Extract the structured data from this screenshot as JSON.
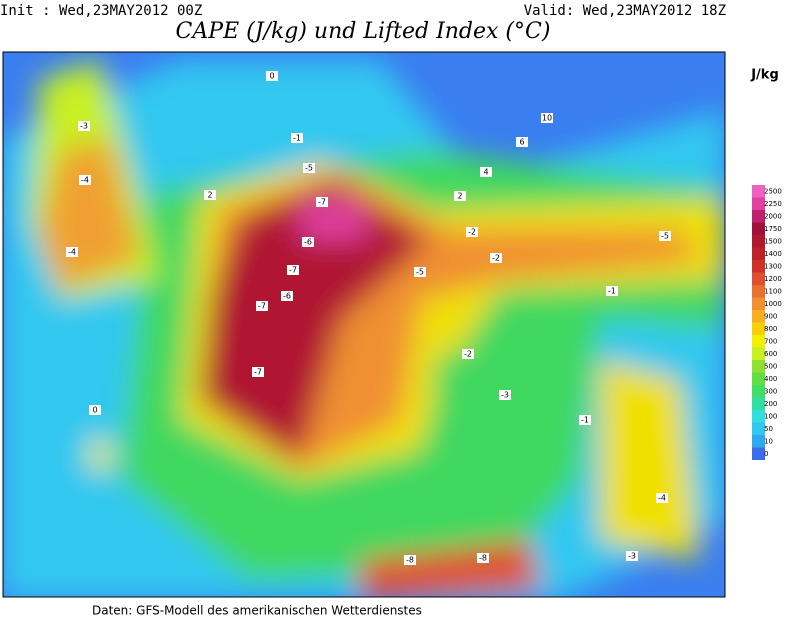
{
  "header": {
    "init": "Init : Wed,23MAY2012 00Z",
    "valid": "Valid: Wed,23MAY2012 18Z",
    "title": "CAPE (J/kg) und Lifted Index (°C)"
  },
  "legend": {
    "unit": "J/kg",
    "levels": [
      0,
      10,
      50,
      100,
      200,
      300,
      400,
      500,
      600,
      700,
      800,
      900,
      1000,
      1100,
      1200,
      1300,
      1400,
      1500,
      1750,
      2000,
      2250,
      2500
    ],
    "colors": [
      "#3a6cf0",
      "#30a8f0",
      "#30c8f0",
      "#30e0e0",
      "#30e0a0",
      "#40e060",
      "#60e040",
      "#90e030",
      "#c8f020",
      "#f0f000",
      "#f8d000",
      "#f8b020",
      "#f09030",
      "#e87030",
      "#e05030",
      "#d03028",
      "#c02028",
      "#b01830",
      "#a01038",
      "#c02070",
      "#e040a0",
      "#f060c0"
    ]
  },
  "map": {
    "contour_labels": [
      -7,
      -7,
      -6,
      -6,
      -7,
      -7,
      -5,
      -5,
      -4,
      -4,
      -3,
      -3,
      -2,
      -2,
      -1,
      -1,
      0,
      0,
      2,
      2,
      4,
      6,
      10,
      -8,
      -8,
      -5,
      -4,
      -3,
      -2,
      -1
    ]
  },
  "footer": "Daten: GFS-Modell des amerikanischen Wetterdienstes"
}
